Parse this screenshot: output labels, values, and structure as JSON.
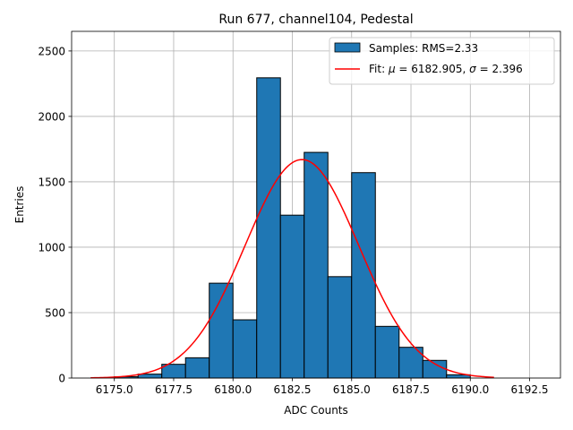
{
  "chart_data": {
    "type": "bar",
    "title": "Run 677, channel104, Pedestal",
    "xlabel": "ADC Counts",
    "ylabel": "Entries",
    "xlim": [
      6173.2,
      6193.8
    ],
    "ylim": [
      0,
      2650
    ],
    "grid": true,
    "legend_position": "top-right",
    "x_ticks": [
      6175.0,
      6177.5,
      6180.0,
      6182.5,
      6185.0,
      6187.5,
      6190.0,
      6192.5
    ],
    "x_tick_labels": [
      "6175.0",
      "6177.5",
      "6180.0",
      "6182.5",
      "6185.0",
      "6187.5",
      "6190.0",
      "6192.5"
    ],
    "y_ticks": [
      0,
      500,
      1000,
      1500,
      2000,
      2500
    ],
    "y_tick_labels": [
      "0",
      "500",
      "1000",
      "1500",
      "2000",
      "2500"
    ],
    "histogram": {
      "name": "Samples: RMS=2.33",
      "bin_edges": [
        6175,
        6176,
        6177,
        6178,
        6179,
        6180,
        6181,
        6182,
        6183,
        6184,
        6185,
        6186,
        6187,
        6188,
        6189,
        6190
      ],
      "counts": [
        10,
        30,
        105,
        155,
        725,
        445,
        2295,
        1245,
        1725,
        775,
        1570,
        395,
        235,
        135,
        25
      ],
      "color": "#1f77b4",
      "edge_color": "#000000"
    },
    "fit": {
      "name_prefix": "Fit: ",
      "name_mu_symbol": "μ",
      "name_mu_value": " = 6182.905, ",
      "name_sigma_symbol": "σ",
      "name_sigma_value": " = 2.396",
      "mu": 6182.905,
      "sigma": 2.396,
      "amplitude": 1670,
      "x_range": [
        6174,
        6191
      ],
      "color": "#ff0000"
    }
  }
}
